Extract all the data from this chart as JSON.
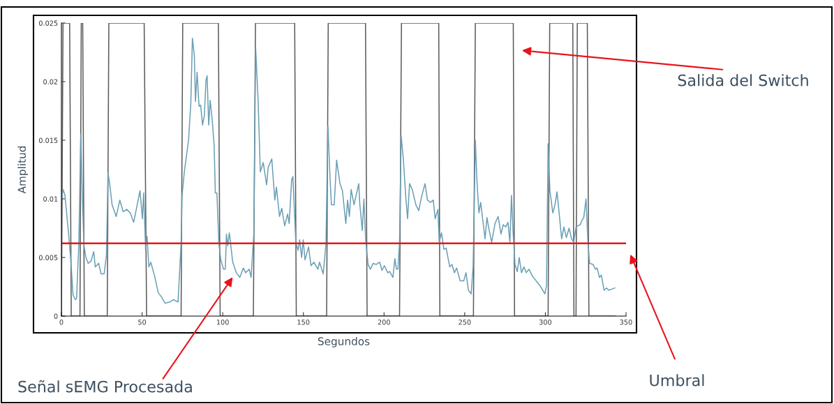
{
  "chart_data": {
    "type": "line",
    "xlabel": "Segundos",
    "ylabel": "Amplitud",
    "xlim": [
      0,
      350
    ],
    "ylim": [
      0,
      0.025
    ],
    "xticks": [
      0,
      50,
      100,
      150,
      200,
      250,
      300,
      350
    ],
    "yticks": [
      0,
      0.005,
      0.01,
      0.015,
      0.02,
      0.025
    ],
    "grid": false,
    "legend": false,
    "marker": "none",
    "line_style": "solid",
    "series": [
      {
        "name": "Salida del Switch",
        "color": "#5a5a5a",
        "x": [
          0,
          1,
          5.1,
          6.1,
          11.5,
          12.3,
          13.2,
          14.2,
          28.4,
          29.4,
          51.3,
          52.8,
          74.2,
          75.2,
          97.3,
          98.4,
          119.0,
          120.3,
          144.6,
          145.6,
          164.4,
          165.4,
          188.5,
          189.5,
          209.6,
          210.8,
          233.9,
          234.6,
          255.4,
          256.6,
          280.1,
          280.9,
          301.7,
          302.7,
          317.0,
          317.7,
          319.0,
          319.8,
          326.0,
          327.0,
          343.3
        ],
        "values": [
          0,
          0.025,
          0.025,
          0,
          0,
          0.025,
          0.025,
          0,
          0,
          0.025,
          0.025,
          0,
          0,
          0.025,
          0.025,
          0,
          0,
          0.025,
          0.025,
          0,
          0,
          0.025,
          0.025,
          0,
          0,
          0.025,
          0.025,
          0,
          0,
          0.025,
          0.025,
          0,
          0,
          0.025,
          0.025,
          0,
          0,
          0.025,
          0.025,
          0,
          0
        ]
      },
      {
        "name": "Señal sEMG Procesada",
        "color": "#6a9fb5",
        "x": [
          0,
          1.0,
          2.2,
          4.4,
          5.8,
          7.2,
          8.6,
          9.4,
          10.8,
          12.0,
          13.2,
          14.0,
          15.2,
          16.6,
          18.4,
          20.0,
          21.0,
          23.1,
          24.6,
          26.5,
          27.9,
          28.9,
          29.9,
          31.4,
          34.0,
          36.2,
          38.3,
          40.5,
          42.7,
          44.8,
          47.0,
          48.7,
          50.2,
          51.0,
          52.2,
          53.1,
          54.2,
          55.4,
          57.8,
          60.0,
          62.2,
          64.3,
          67.2,
          69.4,
          72.3,
          74.2,
          74.8,
          76.2,
          78.8,
          80.2,
          81.2,
          82.4,
          83.1,
          84.1,
          85.3,
          86.3,
          87.5,
          88.6,
          89.6,
          90.3,
          91.3,
          92.2,
          93.5,
          94.7,
          95.4,
          96.4,
          97.6,
          98.8,
          100.5,
          101.6,
          102.3,
          103.1,
          104.1,
          106.2,
          108.4,
          110.6,
          112.8,
          114.2,
          116.4,
          117.6,
          119.3,
          120.4,
          121.9,
          123.3,
          125.1,
          127.2,
          128.2,
          130.4,
          132.3,
          133.3,
          135.2,
          136.6,
          138.4,
          140.2,
          141.2,
          142.7,
          143.5,
          145.3,
          146.7,
          147.7,
          148.9,
          149.9,
          151.0,
          153.2,
          154.7,
          156.5,
          159.0,
          160.0,
          162.3,
          164.0,
          165.2,
          166.6,
          167.4,
          169.1,
          170.6,
          172.7,
          174.2,
          176.3,
          177.4,
          178.5,
          179.6,
          181.4,
          184.3,
          185.0,
          186.5,
          187.5,
          188.6,
          190.1,
          191.5,
          193.3,
          195.1,
          197.3,
          198.7,
          200.2,
          202.3,
          203.5,
          205.5,
          206.7,
          207.7,
          208.6,
          209.6,
          210.6,
          212.0,
          213.5,
          214.6,
          215.8,
          217.5,
          219.7,
          221.5,
          223.3,
          225.4,
          226.9,
          228.8,
          230.5,
          231.7,
          233.4,
          234.2,
          235.6,
          237.1,
          238.5,
          240.7,
          242.1,
          243.6,
          245.0,
          247.2,
          249.4,
          250.8,
          252.3,
          254.0,
          255.2,
          256.6,
          257.6,
          258.8,
          259.9,
          261.2,
          262.6,
          263.8,
          265.2,
          266.7,
          268.8,
          270.7,
          272.5,
          273.9,
          275.4,
          276.8,
          278.0,
          279.0,
          280.0,
          281.2,
          282.6,
          283.8,
          285.2,
          286.7,
          288.1,
          289.9,
          292.0,
          294.9,
          297.1,
          299.7,
          300.7,
          301.7,
          302.8,
          304.6,
          306.0,
          307.2,
          308.6,
          310.1,
          311.5,
          313.0,
          314.7,
          316.2,
          317.6,
          319.0,
          320.2,
          321.6,
          322.8,
          323.8,
          325.2,
          326.3,
          327.4,
          329.6,
          331.0,
          332.1,
          333.5,
          334.7,
          336.4,
          337.9,
          339.3,
          341.2,
          343.1
        ],
        "values": [
          0.01,
          0.0108,
          0.0103,
          0.0071,
          0.0048,
          0.0018,
          0.0014,
          0.0015,
          0.0062,
          0.0155,
          0.0091,
          0.006,
          0.005,
          0.0045,
          0.0047,
          0.0055,
          0.0042,
          0.0045,
          0.0036,
          0.0036,
          0.0052,
          0.0122,
          0.0113,
          0.0095,
          0.0085,
          0.0099,
          0.0089,
          0.0091,
          0.0088,
          0.008,
          0.0095,
          0.0107,
          0.0083,
          0.0105,
          0.0056,
          0.0068,
          0.0042,
          0.0046,
          0.0034,
          0.002,
          0.0016,
          0.0011,
          0.0012,
          0.0014,
          0.0012,
          0.0063,
          0.0103,
          0.0123,
          0.015,
          0.0181,
          0.0237,
          0.0222,
          0.0183,
          0.0208,
          0.0179,
          0.018,
          0.0163,
          0.0171,
          0.0201,
          0.0205,
          0.0163,
          0.0184,
          0.0167,
          0.0145,
          0.0105,
          0.0105,
          0.0062,
          0.0048,
          0.004,
          0.004,
          0.007,
          0.006,
          0.0071,
          0.0046,
          0.0037,
          0.0033,
          0.0041,
          0.0037,
          0.004,
          0.0033,
          0.0071,
          0.0229,
          0.0185,
          0.0123,
          0.0131,
          0.0112,
          0.0127,
          0.0134,
          0.0099,
          0.011,
          0.0085,
          0.0092,
          0.0077,
          0.0087,
          0.0079,
          0.0116,
          0.0119,
          0.0063,
          0.0056,
          0.0065,
          0.005,
          0.0065,
          0.0048,
          0.0059,
          0.0043,
          0.0046,
          0.004,
          0.0046,
          0.0036,
          0.0062,
          0.0162,
          0.0115,
          0.0095,
          0.0095,
          0.0133,
          0.0113,
          0.0107,
          0.0079,
          0.0099,
          0.0085,
          0.0108,
          0.0095,
          0.0113,
          0.0095,
          0.0073,
          0.01,
          0.0065,
          0.0044,
          0.004,
          0.0045,
          0.0044,
          0.0046,
          0.0039,
          0.0043,
          0.0037,
          0.0038,
          0.0033,
          0.0049,
          0.004,
          0.004,
          0.0063,
          0.0154,
          0.0133,
          0.0101,
          0.0083,
          0.0113,
          0.0108,
          0.0095,
          0.009,
          0.0102,
          0.0113,
          0.0099,
          0.0097,
          0.0099,
          0.0083,
          0.0091,
          0.0063,
          0.0071,
          0.0057,
          0.0058,
          0.0042,
          0.0044,
          0.0037,
          0.0041,
          0.003,
          0.003,
          0.0037,
          0.0022,
          0.0019,
          0.0042,
          0.015,
          0.0115,
          0.0088,
          0.0097,
          0.0082,
          0.0066,
          0.0084,
          0.0073,
          0.0063,
          0.0079,
          0.0085,
          0.007,
          0.0078,
          0.0076,
          0.008,
          0.0063,
          0.0103,
          0.0071,
          0.0044,
          0.0038,
          0.005,
          0.0037,
          0.0042,
          0.0037,
          0.004,
          0.0034,
          0.0029,
          0.0025,
          0.0019,
          0.0026,
          0.0147,
          0.0107,
          0.0088,
          0.0095,
          0.0106,
          0.0087,
          0.0066,
          0.0076,
          0.0067,
          0.0075,
          0.0066,
          0.0063,
          0.0076,
          0.0077,
          0.0078,
          0.0082,
          0.0084,
          0.01,
          0.0065,
          0.0045,
          0.0044,
          0.004,
          0.0041,
          0.0033,
          0.0035,
          0.0022,
          0.0024,
          0.0022,
          0.0023,
          0.0024
        ]
      }
    ],
    "ref_lines": [
      {
        "axis": "y",
        "value": 0.0062,
        "color": "#e8141b"
      }
    ],
    "annotations": [
      "Umbral"
    ]
  }
}
